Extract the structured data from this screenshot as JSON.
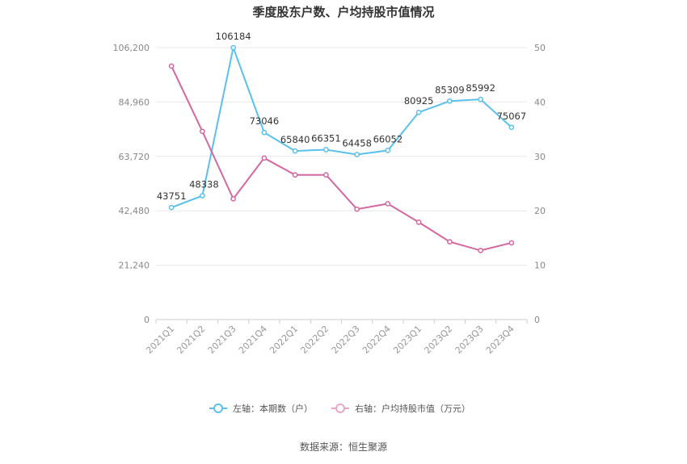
{
  "chart_data": {
    "type": "line",
    "title": "季度股东户数、户均持股市值情况",
    "categories": [
      "2021Q1",
      "2021Q2",
      "2021Q3",
      "2021Q4",
      "2022Q1",
      "2022Q2",
      "2022Q3",
      "2022Q4",
      "2023Q1",
      "2023Q2",
      "2023Q3",
      "2023Q4"
    ],
    "left_axis": {
      "ylim": [
        0,
        106200
      ],
      "ticks": [
        "0",
        "21,240",
        "42,480",
        "63,720",
        "84,960",
        "106,200"
      ],
      "tick_values": [
        0,
        21240,
        42480,
        63720,
        84960,
        106200
      ]
    },
    "right_axis": {
      "ylim": [
        0,
        50
      ],
      "ticks": [
        "0",
        "10",
        "20",
        "30",
        "40",
        "50"
      ],
      "tick_values": [
        0,
        10,
        20,
        30,
        40,
        50
      ]
    },
    "grid": true,
    "legend_position": "bottom",
    "series": [
      {
        "name": "左轴：本期数（户）",
        "axis": "left",
        "color": "#5bc0eb",
        "values": [
          43751,
          48338,
          106184,
          73046,
          65840,
          66351,
          64458,
          66052,
          80925,
          85309,
          85992,
          75067
        ],
        "labels": [
          "43751",
          "48338",
          "106184",
          "73046",
          "65840",
          "66351",
          "64458",
          "66052",
          "80925",
          "85309",
          "85992",
          "75067"
        ]
      },
      {
        "name": "右轴：户均持股市值（万元）",
        "axis": "right",
        "color": "#d4679f",
        "values": [
          46.6,
          34.6,
          22.2,
          29.7,
          26.6,
          26.6,
          20.3,
          21.3,
          17.9,
          14.3,
          12.7,
          14.1
        ]
      }
    ],
    "source": "数据来源：恒生聚源"
  }
}
